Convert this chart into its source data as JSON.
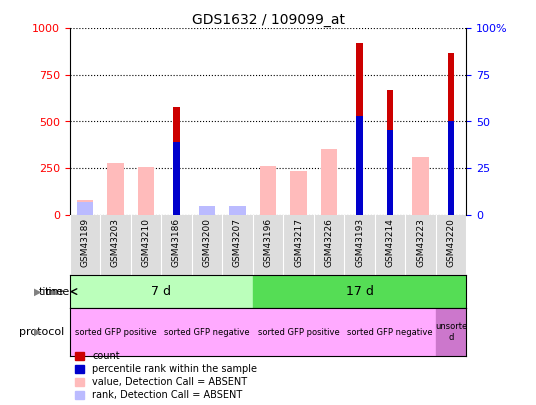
{
  "title": "GDS1632 / 109099_at",
  "samples": [
    "GSM43189",
    "GSM43203",
    "GSM43210",
    "GSM43186",
    "GSM43200",
    "GSM43207",
    "GSM43196",
    "GSM43217",
    "GSM43226",
    "GSM43193",
    "GSM43214",
    "GSM43223",
    "GSM43220"
  ],
  "count_values": [
    0,
    0,
    0,
    580,
    0,
    0,
    0,
    0,
    0,
    920,
    670,
    0,
    870
  ],
  "percentile_values": [
    0,
    0,
    0,
    390,
    0,
    0,
    0,
    0,
    0,
    530,
    455,
    0,
    500
  ],
  "absent_value_values": [
    80,
    275,
    255,
    0,
    0,
    0,
    260,
    235,
    355,
    0,
    0,
    310,
    0
  ],
  "absent_rank_values": [
    70,
    0,
    0,
    0,
    45,
    45,
    0,
    0,
    0,
    0,
    0,
    0,
    0
  ],
  "time_groups": [
    {
      "label": "7 d",
      "start": 0,
      "end": 6,
      "color": "#bbffbb"
    },
    {
      "label": "17 d",
      "start": 6,
      "end": 13,
      "color": "#55dd55"
    }
  ],
  "protocol_groups": [
    {
      "label": "sorted GFP positive",
      "start": 0,
      "end": 3,
      "color": "#ffaaff"
    },
    {
      "label": "sorted GFP negative",
      "start": 3,
      "end": 6,
      "color": "#ffaaff"
    },
    {
      "label": "sorted GFP positive",
      "start": 6,
      "end": 9,
      "color": "#ffaaff"
    },
    {
      "label": "sorted GFP negative",
      "start": 9,
      "end": 12,
      "color": "#ffaaff"
    },
    {
      "label": "unsorte\nd",
      "start": 12,
      "end": 13,
      "color": "#cc77cc"
    }
  ],
  "time_label": "time",
  "protocol_label": "protocol",
  "color_count": "#cc0000",
  "color_percentile": "#0000cc",
  "color_absent_value": "#ffbbbb",
  "color_absent_rank": "#bbbbff",
  "ylim_left": [
    0,
    1000
  ],
  "ylim_right": [
    0,
    100
  ],
  "yticks_left": [
    0,
    250,
    500,
    750,
    1000
  ],
  "yticks_right": [
    0,
    25,
    50,
    75,
    100
  ],
  "background_color": "#ffffff"
}
